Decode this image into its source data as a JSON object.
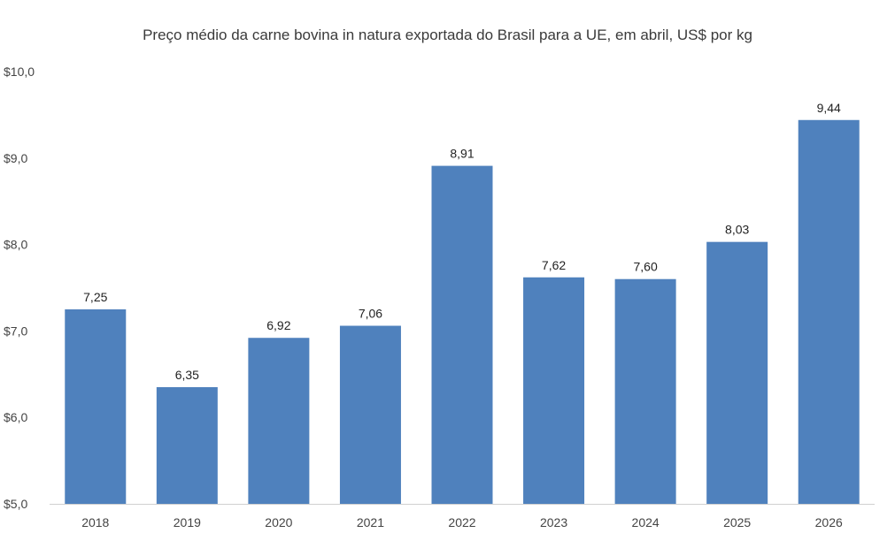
{
  "chart_data": {
    "type": "bar",
    "title": "Preço médio da carne bovina in natura exportada do Brasil para a UE, em abril, US$ por kg",
    "xlabel": "",
    "ylabel": "",
    "categories": [
      "2018",
      "2019",
      "2020",
      "2021",
      "2022",
      "2023",
      "2024",
      "2025",
      "2026"
    ],
    "values": [
      7.25,
      6.35,
      6.92,
      7.06,
      8.91,
      7.62,
      7.6,
      8.03,
      9.44
    ],
    "data_labels": [
      "7,25",
      "6,35",
      "6,92",
      "7,06",
      "8,91",
      "7,62",
      "7,60",
      "8,03",
      "9,44"
    ],
    "ylim": [
      5,
      10
    ],
    "y_ticks": [
      5,
      6,
      7,
      8,
      9,
      10
    ],
    "y_tick_labels": [
      "$5,0",
      "$6,0",
      "$7,0",
      "$8,0",
      "$9,0",
      "$10,0"
    ],
    "grid": false,
    "legend": "none",
    "bar_color": "#4f81bd",
    "axis_color": "#d0d0d0"
  }
}
